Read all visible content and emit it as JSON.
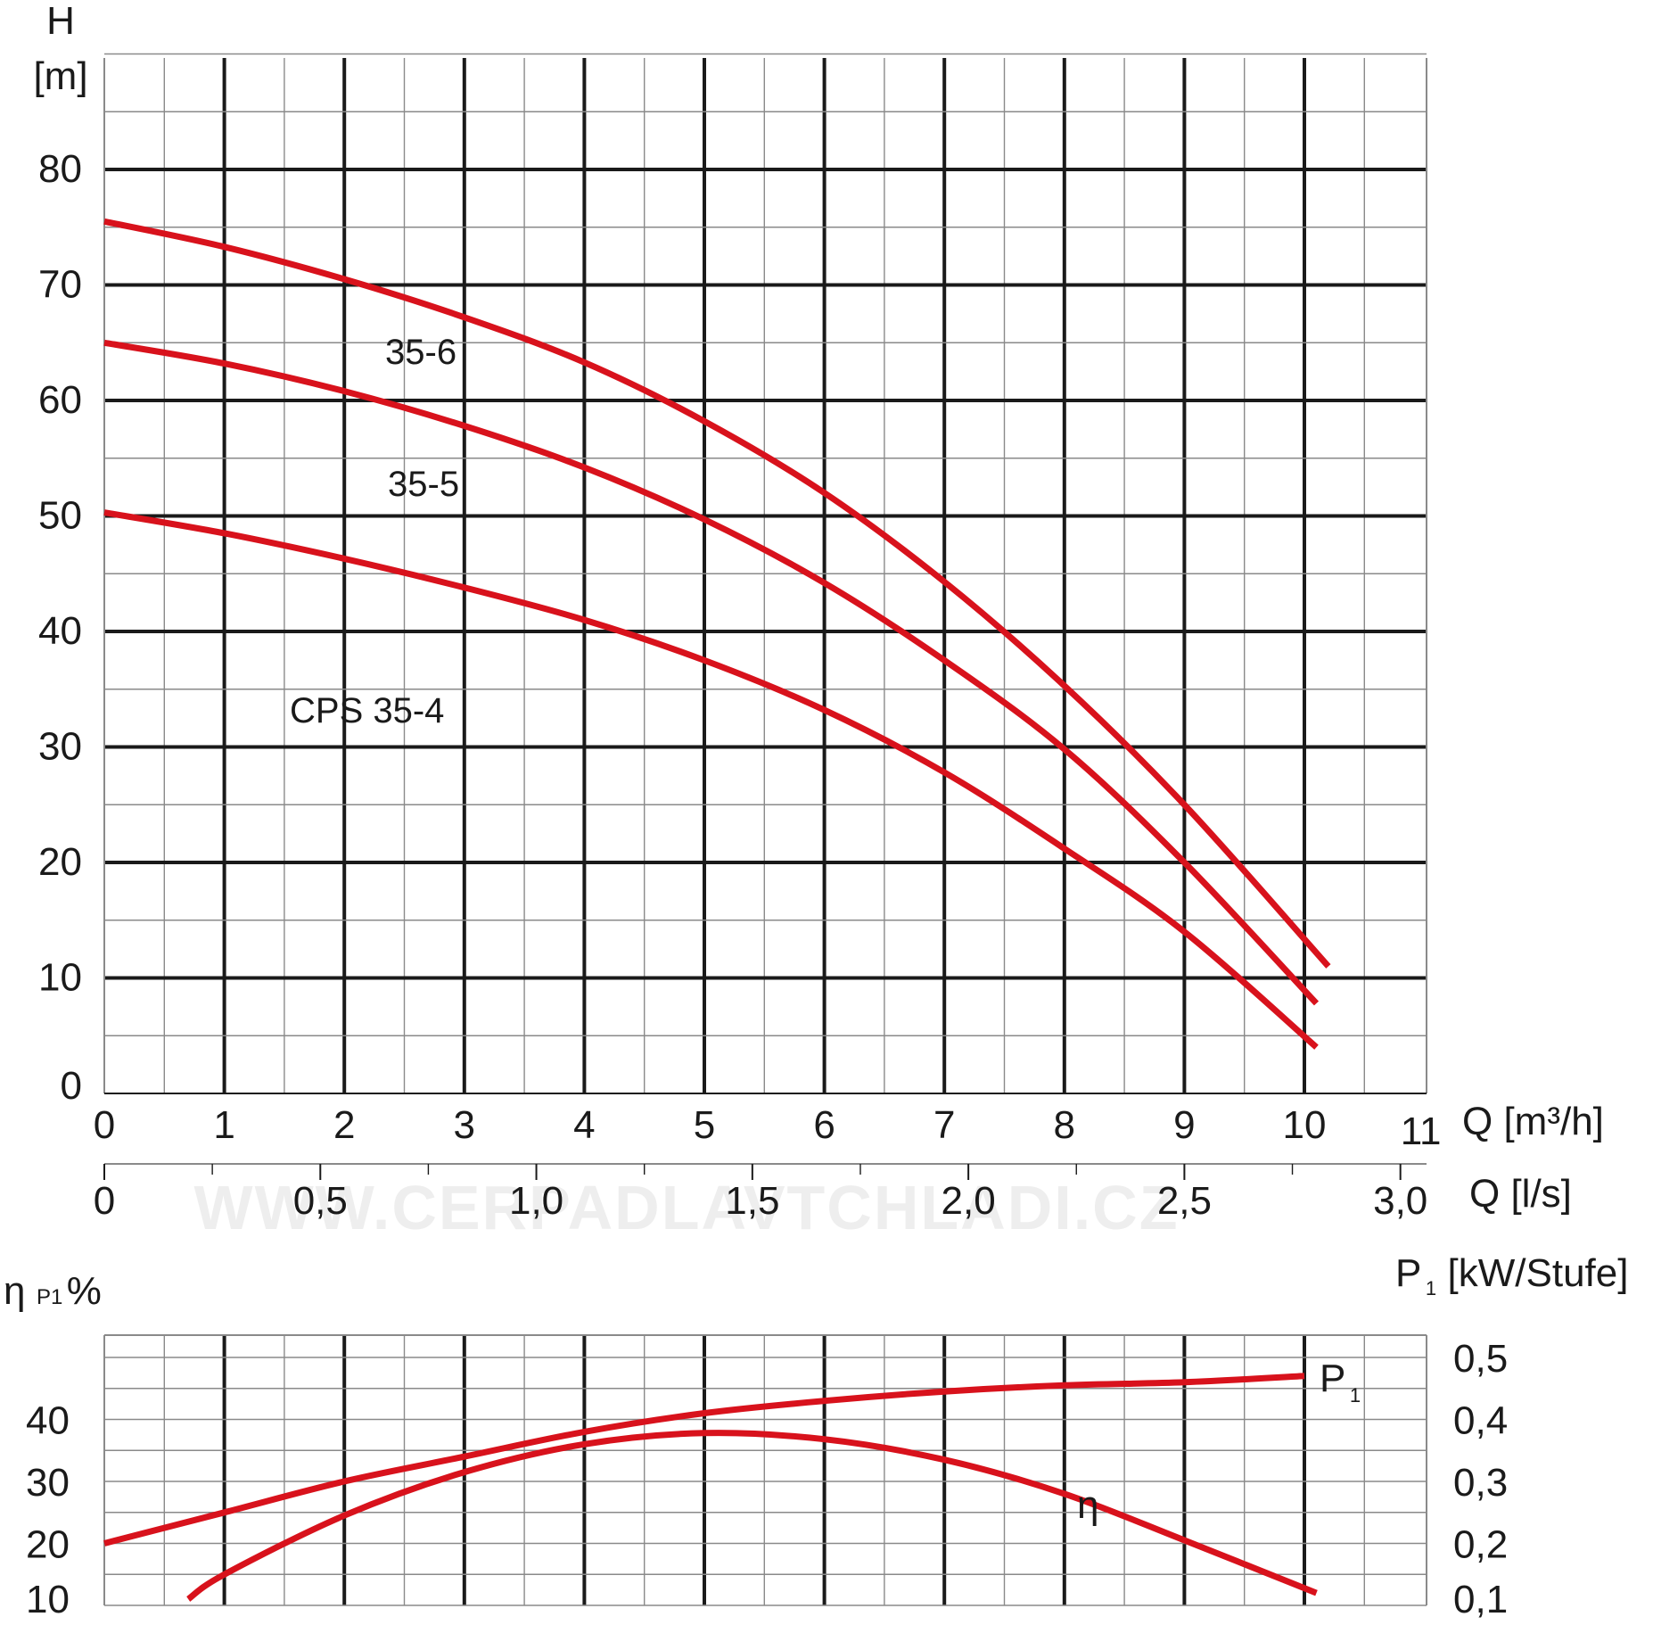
{
  "colors": {
    "curve": "#d8121c",
    "grid_major": "#1a1a1a",
    "grid_minor": "#8a8a8a",
    "text": "#1a1a1a"
  },
  "watermark": "WWW.CERPADLAVTCHLADI.CZ",
  "chart_data": [
    {
      "type": "line",
      "title": "",
      "xlabel": "Q [m³/h]",
      "xlabel_secondary": "Q [l/s]",
      "ylabel_line1": "H",
      "ylabel_line2": "[m]",
      "xlim": [
        0,
        11
      ],
      "ylim": [
        0,
        90
      ],
      "grid": true,
      "x_ticks": [
        "0",
        "1",
        "2",
        "3",
        "4",
        "5",
        "6",
        "7",
        "8",
        "9",
        "10",
        "11"
      ],
      "y_ticks": [
        "0",
        "10",
        "20",
        "30",
        "40",
        "50",
        "60",
        "70",
        "80"
      ],
      "secondary_x": {
        "lim": [
          0,
          3.0555
        ],
        "ticks": [
          0,
          0.5,
          1.0,
          1.5,
          2.0,
          2.5,
          3.0
        ],
        "labels": [
          "0",
          "0,5",
          "1,0",
          "1,5",
          "2,0",
          "2,5",
          "3,0"
        ]
      },
      "series": [
        {
          "name": "35-6",
          "x": [
            0,
            1,
            2,
            3,
            4,
            5,
            6,
            7,
            8,
            9,
            10.2
          ],
          "y": [
            75.5,
            73.3,
            70.5,
            67.2,
            63.3,
            58.2,
            52,
            44.3,
            35.3,
            25,
            11
          ]
        },
        {
          "name": "35-5",
          "x": [
            0,
            1,
            2,
            3,
            4,
            5,
            6,
            7,
            8,
            9,
            10.1
          ],
          "y": [
            65,
            63.2,
            60.8,
            57.8,
            54.2,
            49.7,
            44.2,
            37.5,
            29.8,
            20,
            7.8
          ]
        },
        {
          "name": "CPS 35-4",
          "x": [
            0,
            1,
            2,
            3,
            4,
            5,
            6,
            7,
            8,
            9,
            10.1
          ],
          "y": [
            50.3,
            48.5,
            46.3,
            43.8,
            41,
            37.5,
            33.2,
            27.8,
            21.2,
            14,
            4
          ]
        }
      ],
      "curve_labels": [
        "35-6",
        "35-5",
        "CPS 35-4"
      ]
    },
    {
      "type": "line",
      "title": "",
      "ylabel_left_main": "η",
      "ylabel_left_sub": "P1",
      "ylabel_left_unit": "%",
      "ylabel_right_main": "P",
      "ylabel_right_sub": "1",
      "ylabel_right_unit": "[kW/Stufe]",
      "xlim": [
        0,
        11
      ],
      "ylim_left": [
        10,
        50
      ],
      "ylim_right": [
        0.1,
        0.5
      ],
      "grid": true,
      "y_ticks_left": [
        "10",
        "20",
        "30",
        "40"
      ],
      "y_ticks_right": [
        "0,1",
        "0,2",
        "0,3",
        "0,4",
        "0,5"
      ],
      "series": [
        {
          "name": "P1",
          "axis": "right",
          "x": [
            0,
            1,
            2,
            3,
            4,
            5,
            6,
            7,
            8,
            9,
            10
          ],
          "y": [
            0.2,
            0.25,
            0.3,
            0.34,
            0.38,
            0.41,
            0.43,
            0.445,
            0.455,
            0.46,
            0.47
          ]
        },
        {
          "name": "η",
          "axis": "left",
          "x": [
            0.7,
            1,
            2,
            3,
            4,
            5,
            6,
            7,
            8,
            9,
            10.1
          ],
          "y": [
            11,
            15,
            24.5,
            31.5,
            36,
            37.8,
            36.8,
            33.5,
            28,
            20.5,
            12
          ]
        }
      ],
      "curve_labels": [
        "P",
        "1",
        "η"
      ]
    }
  ]
}
